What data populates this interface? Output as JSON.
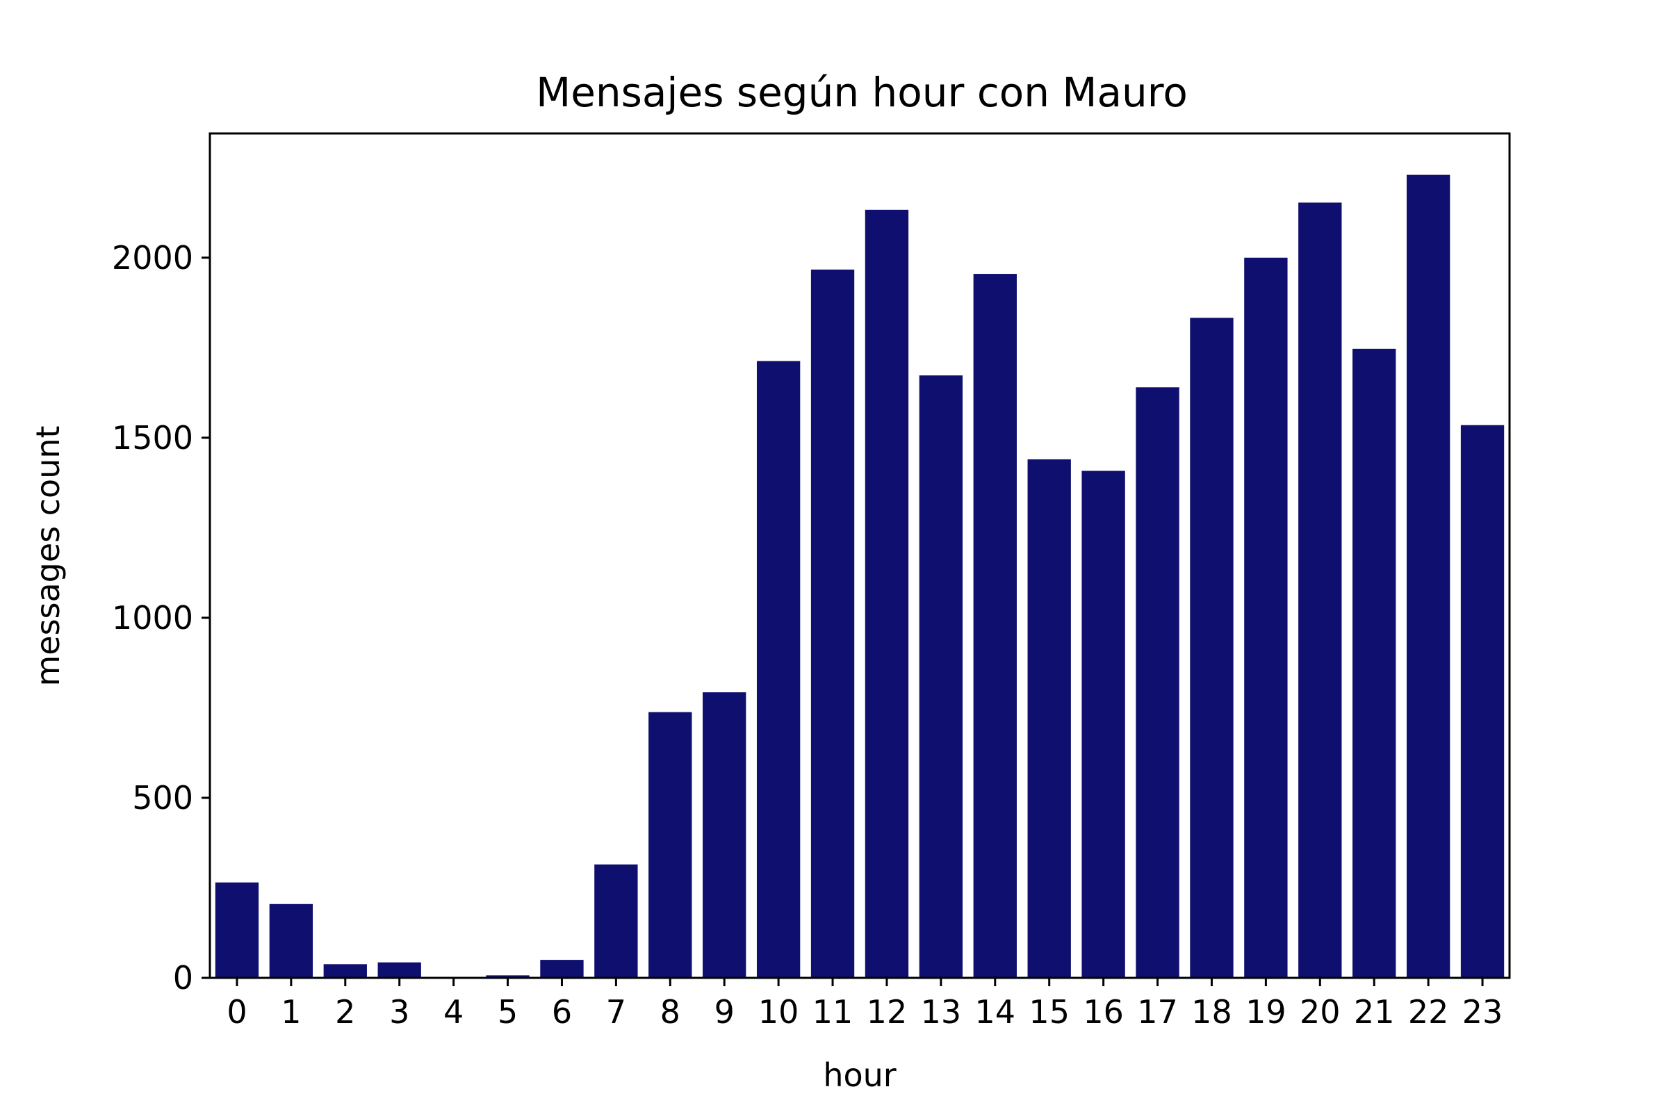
{
  "chart_data": {
    "type": "bar",
    "title": "Mensajes según hour con Mauro",
    "xlabel": "hour",
    "ylabel": "messages count",
    "categories": [
      "0",
      "1",
      "2",
      "3",
      "4",
      "5",
      "6",
      "7",
      "8",
      "9",
      "10",
      "11",
      "12",
      "13",
      "14",
      "15",
      "16",
      "17",
      "18",
      "19",
      "20",
      "21",
      "22",
      "23"
    ],
    "values": [
      265,
      205,
      38,
      43,
      2,
      7,
      50,
      315,
      738,
      793,
      1713,
      1967,
      2133,
      1673,
      1955,
      1440,
      1408,
      1640,
      1833,
      2000,
      2153,
      1747,
      2230,
      1535
    ],
    "yticks": [
      0,
      500,
      1000,
      1500,
      2000
    ],
    "ylim": [
      0,
      2345
    ],
    "grid": false,
    "bar_color": "#0e0f6e"
  }
}
